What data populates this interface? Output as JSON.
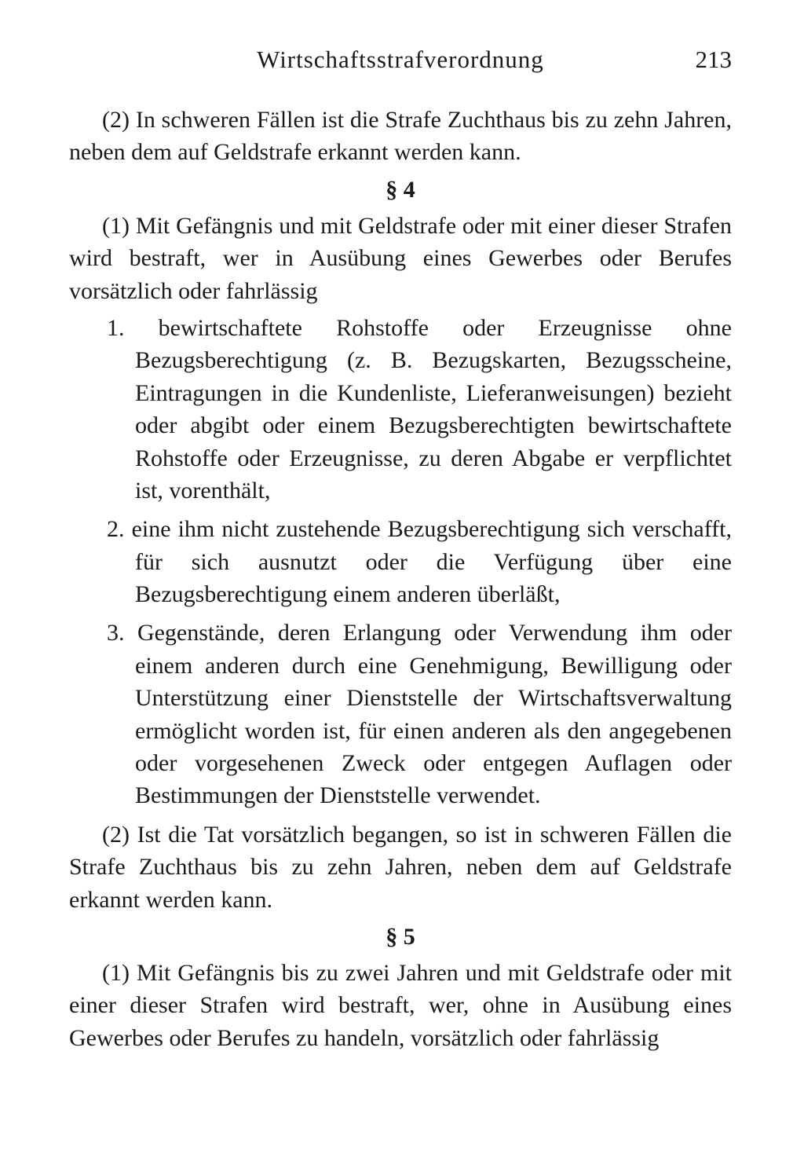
{
  "header": {
    "running_title": "Wirtschaftsstrafverordnung",
    "page_number": "213"
  },
  "body": {
    "para1": "(2) In schweren Fällen ist die Strafe Zuchthaus bis zu zehn Jahren, neben dem auf Geldstrafe erkannt werden kann.",
    "section4_heading": "§ 4",
    "section4_para1": "(1) Mit Gefängnis und mit Geldstrafe oder mit einer dieser Strafen wird bestraft, wer in Ausübung eines Gewerbes oder Berufes vorsätzlich oder fahrlässig",
    "section4_items": [
      "1. bewirtschaftete Rohstoffe oder Erzeugnisse ohne Bezugsberechtigung (z. B. Bezugskarten, Bezugsscheine, Eintragungen in die Kundenliste, Lieferanweisungen) bezieht oder abgibt oder einem Bezugsberechtigten bewirtschaftete Rohstoffe oder Erzeugnisse, zu deren Abgabe er verpflichtet ist, vorenthält,",
      "2. eine ihm nicht zustehende Bezugsberechtigung sich verschafft, für sich ausnutzt oder die Verfügung über eine Bezugsberechtigung einem anderen überläßt,",
      "3. Gegenstände, deren Erlangung oder Verwendung ihm oder einem anderen durch eine Genehmigung, Bewilligung oder Unterstützung einer Dienststelle der Wirtschaftsverwaltung ermöglicht worden ist, für einen anderen als den angegebenen oder vorgesehenen Zweck oder entgegen Auflagen oder Bestimmungen der Dienststelle verwendet."
    ],
    "section4_para2": "(2) Ist die Tat vorsätzlich begangen, so ist in schweren Fällen die Strafe Zuchthaus bis zu zehn Jahren, neben dem auf Geldstrafe erkannt werden kann.",
    "section5_heading": "§ 5",
    "section5_para1": "(1) Mit Gefängnis bis zu zwei Jahren und mit Geldstrafe oder mit einer dieser Strafen wird bestraft, wer, ohne in Ausübung eines Gewerbes oder Berufes zu handeln, vorsätzlich oder fahrlässig"
  },
  "style": {
    "background_color": "#ffffff",
    "text_color": "#1a1a1a",
    "body_fontsize": 30,
    "header_fontsize": 31,
    "line_height": 1.38
  }
}
